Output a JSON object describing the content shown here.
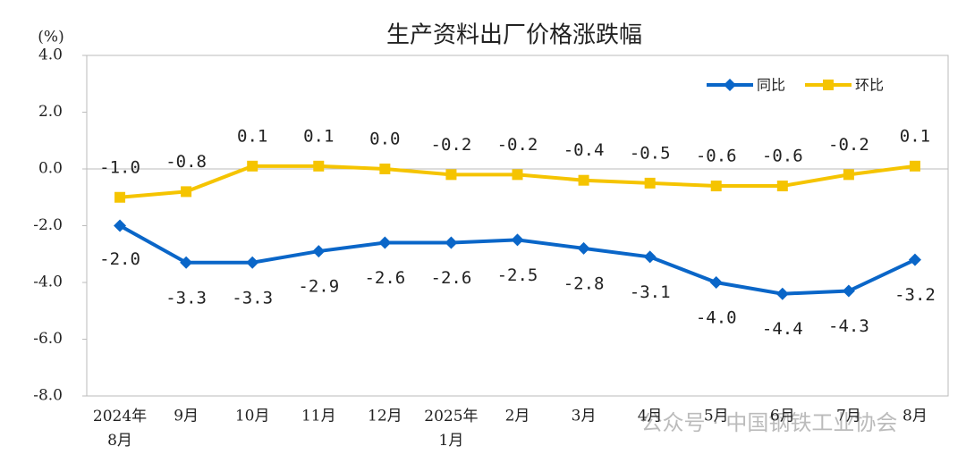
{
  "chart_data": {
    "type": "line",
    "title": "生产资料出厂价格涨跌幅",
    "y_label": "(%)",
    "categories": [
      "2024年\n8月",
      "9月",
      "10月",
      "11月",
      "12月",
      "2025年\n1月",
      "2月",
      "3月",
      "4月",
      "5月",
      "6月",
      "7月",
      "8月"
    ],
    "series": [
      {
        "name": "同比",
        "color": "#0a66c8",
        "marker": "diamond",
        "values": [
          -2.0,
          -3.3,
          -3.3,
          -2.9,
          -2.6,
          -2.6,
          -2.5,
          -2.8,
          -3.1,
          -4.0,
          -4.4,
          -4.3,
          -3.2
        ],
        "value_labels": [
          "-2.0",
          "-3.3",
          "-3.3",
          "-2.9",
          "-2.6",
          "-2.6",
          "-2.5",
          "-2.8",
          "-3.1",
          "-4.0",
          "-4.4",
          "-4.3",
          "-3.2"
        ]
      },
      {
        "name": "环比",
        "color": "#f5c400",
        "marker": "square",
        "values": [
          -1.0,
          -0.8,
          0.1,
          0.1,
          0.0,
          -0.2,
          -0.2,
          -0.4,
          -0.5,
          -0.6,
          -0.6,
          -0.2,
          0.1
        ],
        "value_labels": [
          "-1.0",
          "-0.8",
          "0.1",
          "0.1",
          "0.0",
          "-0.2",
          "-0.2",
          "-0.4",
          "-0.5",
          "-0.6",
          "-0.6",
          "-0.2",
          "0.1"
        ]
      }
    ],
    "ylim": [
      -8,
      4
    ],
    "yticks": [
      {
        "value": -8,
        "label": "-8.0"
      },
      {
        "value": -6,
        "label": "-6.0"
      },
      {
        "value": -4,
        "label": "-4.0"
      },
      {
        "value": -2,
        "label": "-2.0"
      },
      {
        "value": 0,
        "label": "0.0"
      },
      {
        "value": 2,
        "label": "2.0"
      },
      {
        "value": 4,
        "label": "4.0"
      }
    ],
    "legend": "top-right",
    "watermark": "公众号 · 中国钢铁工业协会"
  }
}
